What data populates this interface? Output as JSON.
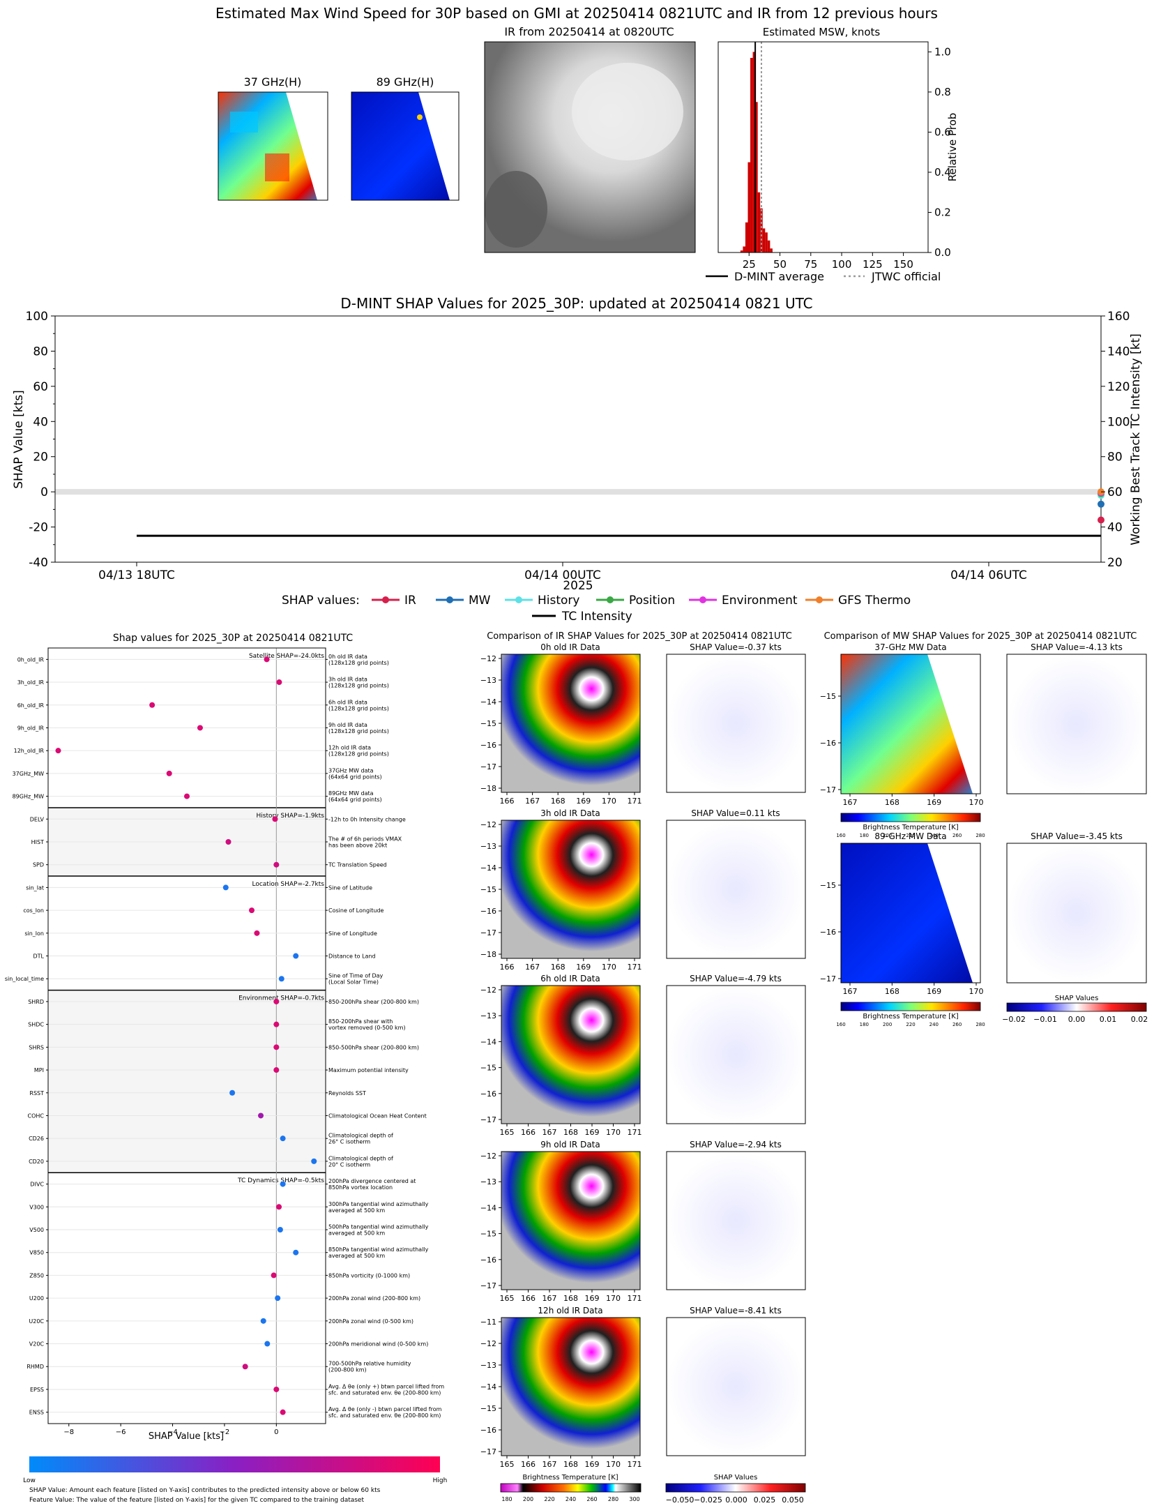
{
  "top": {
    "title": "Estimated Max Wind Speed for 30P based on GMI at 20250414 0821UTC and IR from 12 previous hours",
    "panel_37_title": "37 GHz(H)",
    "panel_89_title": "89 GHz(H)",
    "ir_title": "IR from 20250414 at 0820UTC",
    "msw_title": "Estimated MSW, knots",
    "msw_ylabel": "Relative Prob",
    "legend": [
      "D-MINT average",
      "JTWC official"
    ]
  },
  "shap_ts": {
    "title": "D-MINT SHAP Values for 2025_30P: updated at 20250414 0821 UTC",
    "ylabel_left": "SHAP Value [kts]",
    "ylabel_right": "Working Best Track TC Intensity [kt]",
    "xlabel": "2025",
    "legend_title": "SHAP values:",
    "legend": [
      "IR",
      "MW",
      "History",
      "Position",
      "Environment",
      "GFS Thermo",
      "TC Intensity"
    ]
  },
  "bar": {
    "title": "Shap values for 2025_30P at 20250414 0821UTC",
    "xlabel": "SHAP Value [kts]",
    "group_labels": [
      "Satellite SHAP=-24.0kts",
      "History SHAP=-1.9kts",
      "Location SHAP=-2.7kts",
      "Environment SHAP=-0.7kts",
      "TC Dynamics SHAP=-0.5kts"
    ],
    "cbar_low": "Low",
    "cbar_high": "High",
    "footnote1": "SHAP Value: Amount each feature [listed on Y-axis] contributes to the predicted intensity above or below 60 kts",
    "footnote2": "Feature Value: The value of the feature [listed on Y-axis] for the given TC compared to the training dataset"
  },
  "ir_cmp": {
    "title": "Comparison of IR SHAP Values for 2025_30P at 20250414 0821UTC",
    "rows": [
      {
        "data_title": "0h old IR Data",
        "shap_title": "SHAP Value=-0.37 kts"
      },
      {
        "data_title": "3h old IR Data",
        "shap_title": "SHAP Value=0.11 kts"
      },
      {
        "data_title": "6h old IR Data",
        "shap_title": "SHAP Value=-4.79 kts"
      },
      {
        "data_title": "9h old IR Data",
        "shap_title": "SHAP Value=-2.94 kts"
      },
      {
        "data_title": "12h old IR Data",
        "shap_title": "SHAP Value=-8.41 kts"
      }
    ],
    "cbar_left_label": "Brightness Temperature [K]",
    "cbar_right_label": "SHAP Values"
  },
  "mw_cmp": {
    "title": "Comparison of MW SHAP Values for 2025_30P at 20250414 0821UTC",
    "rows": [
      {
        "data_title": "37-GHz MW Data",
        "shap_title": "SHAP Value=-4.13 kts"
      },
      {
        "data_title": "89-GHz MW Data",
        "shap_title": "SHAP Value=-3.45 kts"
      }
    ],
    "cbar_bt_label": "Brightness Temperature [K]",
    "cbar_shap_label": "SHAP Values"
  },
  "colors": {
    "ir": "#d6204b",
    "mw": "#1f6fb4",
    "history": "#5ee1e6",
    "position": "#3aa845",
    "environment": "#e033e0",
    "thermo": "#f07f2a"
  },
  "chart_data": [
    {
      "type": "bar",
      "title": "Estimated MSW, knots",
      "ylabel": "Relative Prob",
      "xlim": [
        0,
        170
      ],
      "ylim": [
        0,
        1.05
      ],
      "xticks": [
        25,
        50,
        75,
        100,
        125,
        150
      ],
      "yticks": [
        0.0,
        0.2,
        0.4,
        0.6,
        0.8,
        1.0
      ],
      "bins": [
        18,
        20,
        22,
        24,
        26,
        28,
        30,
        32,
        34,
        36,
        38,
        40,
        42
      ],
      "values": [
        0.01,
        0.03,
        0.15,
        0.45,
        0.97,
        1.0,
        0.75,
        0.3,
        0.22,
        0.12,
        0.1,
        0.06,
        0.02
      ],
      "dmint_average": 30,
      "jtwc_official": 35
    },
    {
      "type": "line",
      "title": "D-MINT SHAP Values for 2025_30P: updated at 20250414 0821 UTC",
      "xticks": [
        "04/13 18UTC",
        "04/14 00UTC",
        "04/14 06UTC"
      ],
      "ylim_left": [
        -40,
        100
      ],
      "ylim_right": [
        20,
        160
      ],
      "yticks_left": [
        -40,
        -20,
        0,
        20,
        40,
        60,
        80,
        100
      ],
      "yticks_right": [
        20,
        40,
        60,
        80,
        100,
        120,
        140,
        160
      ],
      "tc_intensity": 35,
      "final_points": {
        "IR": -16,
        "MW": -7,
        "History": -2,
        "Position": -1,
        "Environment": -0.5,
        "GFS Thermo": 0
      }
    },
    {
      "type": "scatter",
      "title": "Shap values for 2025_30P at 20250414 0821UTC",
      "xlabel": "SHAP Value [kts]",
      "xlim": [
        -8.8,
        1.9
      ],
      "xticks": [
        -8,
        -6,
        -4,
        -2,
        0
      ],
      "features": [
        {
          "name": "0h_old_IR",
          "desc": "0h old IR data\n(128x128 grid points)",
          "value": -0.37,
          "color": 0.85
        },
        {
          "name": "3h_old_IR",
          "desc": "3h old IR data\n(128x128 grid points)",
          "value": 0.11,
          "color": 0.85
        },
        {
          "name": "6h_old_IR",
          "desc": "6h old IR data\n(128x128 grid points)",
          "value": -4.79,
          "color": 0.85
        },
        {
          "name": "9h_old_IR",
          "desc": "9h old IR data\n(128x128 grid points)",
          "value": -2.94,
          "color": 0.85
        },
        {
          "name": "12h_old_IR",
          "desc": "12h old IR data\n(128x128 grid points)",
          "value": -8.41,
          "color": 0.85
        },
        {
          "name": "37GHz_MW",
          "desc": "37GHz MW data\n(64x64 grid points)",
          "value": -4.13,
          "color": 0.85
        },
        {
          "name": "89GHz_MW",
          "desc": "89GHz MW data\n(64x64 grid points)",
          "value": -3.45,
          "color": 0.85
        },
        {
          "name": "DELV",
          "desc": "-12h to 0h Intensity change",
          "value": -0.05,
          "color": 0.85
        },
        {
          "name": "HIST",
          "desc": "The # of 6h periods VMAX\nhas been above 20kt",
          "value": -1.85,
          "color": 0.8
        },
        {
          "name": "SPD",
          "desc": "TC Translation Speed",
          "value": 0.0,
          "color": 0.8
        },
        {
          "name": "sin_lat",
          "desc": "Sine of Latitude",
          "value": -1.95,
          "color": 0.1
        },
        {
          "name": "cos_lon",
          "desc": "Cosine of Longitude",
          "value": -0.95,
          "color": 0.85
        },
        {
          "name": "sin_lon",
          "desc": "Sine of Longitude",
          "value": -0.75,
          "color": 0.85
        },
        {
          "name": "DTL",
          "desc": "Distance to Land",
          "value": 0.75,
          "color": 0.1
        },
        {
          "name": "sin_local_time",
          "desc": "Sine of Time of Day\n(Local Solar Time)",
          "value": 0.2,
          "color": 0.1
        },
        {
          "name": "SHRD",
          "desc": "850-200hPa shear (200-800 km)",
          "value": 0.0,
          "color": 0.85
        },
        {
          "name": "SHDC",
          "desc": "850-200hPa shear with\nvortex removed (0-500 km)",
          "value": 0.0,
          "color": 0.85
        },
        {
          "name": "SHRS",
          "desc": "850-500hPa shear (200-800 km)",
          "value": 0.0,
          "color": 0.85
        },
        {
          "name": "MPI",
          "desc": "Maximum potential intensity",
          "value": 0.0,
          "color": 0.85
        },
        {
          "name": "RSST",
          "desc": "Reynolds SST",
          "value": -1.7,
          "color": 0.1
        },
        {
          "name": "COHC",
          "desc": "Climatological Ocean Heat Content",
          "value": -0.6,
          "color": 0.6
        },
        {
          "name": "CD26",
          "desc": "Climatological depth of\n26° C isotherm",
          "value": 0.25,
          "color": 0.1
        },
        {
          "name": "CD20",
          "desc": "Climatological depth of\n20° C isotherm",
          "value": 1.45,
          "color": 0.1
        },
        {
          "name": "DIVC",
          "desc": "200hPa divergence centered at\n850hPa vortex location",
          "value": 0.25,
          "color": 0.1
        },
        {
          "name": "V300",
          "desc": "300hPa tangential wind azimuthally\naveraged at 500 km",
          "value": 0.1,
          "color": 0.85
        },
        {
          "name": "V500",
          "desc": "500hPa tangential wind azimuthally\naveraged at 500 km",
          "value": 0.15,
          "color": 0.1
        },
        {
          "name": "V850",
          "desc": "850hPa tangential wind azimuthally\naveraged at 500 km",
          "value": 0.75,
          "color": 0.1
        },
        {
          "name": "Z850",
          "desc": "850hPa vorticity (0-1000 km)",
          "value": -0.1,
          "color": 0.85
        },
        {
          "name": "U200",
          "desc": "200hPa zonal wind (200-800 km)",
          "value": 0.05,
          "color": 0.1
        },
        {
          "name": "U20C",
          "desc": "200hPa zonal wind (0-500 km)",
          "value": -0.5,
          "color": 0.1
        },
        {
          "name": "V20C",
          "desc": "200hPa meridional wind (0-500 km)",
          "value": -0.35,
          "color": 0.1
        },
        {
          "name": "RHMD",
          "desc": "700-500hPa relative humidity\n(200-800 km)",
          "value": -1.2,
          "color": 0.8
        },
        {
          "name": "EPSS",
          "desc": "Avg. Δ θe (only +) btwn parcel lifted from\nsfc. and saturated env. θe (200-800 km)",
          "value": 0.0,
          "color": 0.85
        },
        {
          "name": "ENSS",
          "desc": "Avg. Δ θe (only -) btwn parcel lifted from\nsfc. and saturated env. θe (200-800 km)",
          "value": 0.25,
          "color": 0.85
        }
      ]
    },
    {
      "type": "heatmap",
      "title": "Comparison of IR SHAP Values for 2025_30P at 20250414 0821UTC",
      "ir_panels": [
        {
          "xticks": [
            166,
            167,
            168,
            169,
            170,
            171
          ],
          "yticks": [
            -12,
            -13,
            -14,
            -15,
            -16,
            -17,
            -18
          ]
        },
        {
          "xticks": [
            166,
            167,
            168,
            169,
            170,
            171
          ],
          "yticks": [
            -12,
            -13,
            -14,
            -15,
            -16,
            -17,
            -18
          ]
        },
        {
          "xticks": [
            165,
            166,
            167,
            168,
            169,
            170,
            171
          ],
          "yticks": [
            -12,
            -13,
            -14,
            -15,
            -16,
            -17
          ]
        },
        {
          "xticks": [
            165,
            166,
            167,
            168,
            169,
            170,
            171
          ],
          "yticks": [
            -12,
            -13,
            -14,
            -15,
            -16,
            -17
          ]
        },
        {
          "xticks": [
            165,
            166,
            167,
            168,
            169,
            170,
            171
          ],
          "yticks": [
            -11,
            -12,
            -13,
            -14,
            -15,
            -16,
            -17
          ]
        }
      ],
      "bt_ticks": [
        180,
        200,
        220,
        240,
        260,
        280,
        300
      ],
      "shap_ticks": [
        "−0.050",
        "−0.025",
        "0.000",
        "0.025",
        "0.050"
      ]
    },
    {
      "type": "heatmap",
      "title": "Comparison of MW SHAP Values for 2025_30P at 20250414 0821UTC",
      "xticks": [
        167,
        168,
        169,
        170
      ],
      "yticks": [
        -15,
        -16,
        -17
      ],
      "bt_ticks": [
        160,
        180,
        200,
        220,
        240,
        260,
        280
      ],
      "shap_ticks": [
        "−0.02",
        "−0.01",
        "0.00",
        "0.01",
        "0.02"
      ]
    }
  ]
}
